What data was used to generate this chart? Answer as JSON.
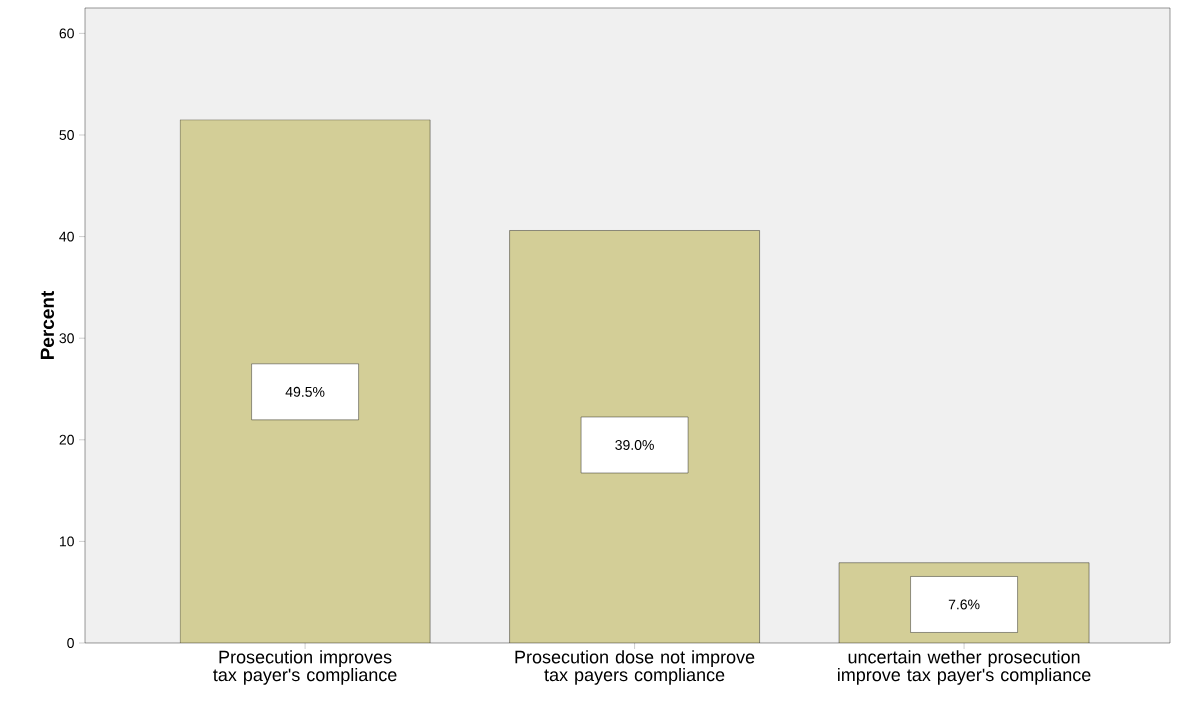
{
  "chart_data": {
    "type": "bar",
    "ylabel": "Percent",
    "categories": [
      "Prosecution improves tax payer's compliance",
      "Prosecution dose not improve tax payers compliance",
      "uncertain wether prosecution improve tax payer's compliance"
    ],
    "values": [
      51.5,
      40.6,
      7.9
    ],
    "annotations": [
      "49.5%",
      "39.0%",
      "7.6%"
    ],
    "color": "#d3ce97",
    "ylim": [
      0,
      62.5
    ],
    "yticks": [
      0,
      10,
      20,
      30,
      40,
      50,
      60
    ]
  }
}
